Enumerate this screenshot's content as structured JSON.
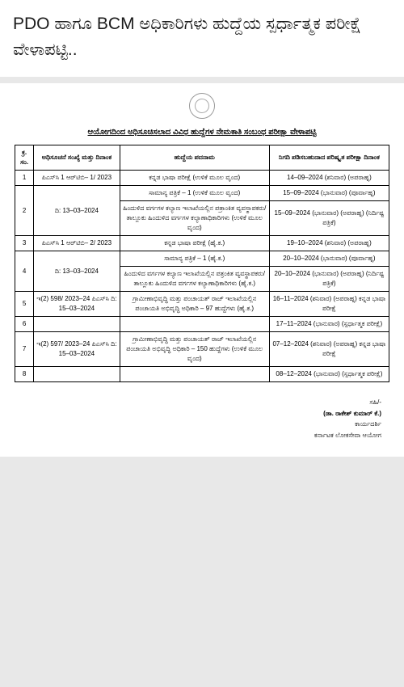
{
  "header": {
    "title": "PDO ಹಾಗೂ BCM ಅಧಿಕಾರಿಗಳು ಹುದ್ದೆಯ ಸ್ಪರ್ಧಾತ್ಮಕ ಪರೀಕ್ಷೆ ವೇಳಾಪಟ್ಟಿ.."
  },
  "document": {
    "title": "ಆಯೋಗದಿಂದ ಅಧಿಸೂಚಿಸಲಾದ ವಿವಿಧ ಹುದ್ದೆಗಳ ನೇಮಕಾತಿ ಸಂಬಂಧ ಪರೀಕ್ಷಾ ವೇಳಾಪಟ್ಟಿ"
  },
  "table": {
    "headers": {
      "sn": "ಕ್ರ. ಸಂ.",
      "notification": "ಅಧಿಸೂಚನೆ ಸಂಖ್ಯೆ ಮತ್ತು ದಿನಾಂಕ",
      "post": "ಹುದ್ದೆಯ ಪದನಾಮ",
      "exam_date": "ನಿಗದಿ ಪಡಿಸಬಹುದಾದ ಪರಿಷ್ಕೃತ ಪರೀಕ್ಷಾ ದಿನಾಂಕ"
    },
    "rows": [
      {
        "sn": "1",
        "notif": "ಪಿಎಸ್‌ಸಿ 1 ಆರ್‌ಟಿಬಿ– 1/ 2023",
        "post": "ಕನ್ನಡ ಭಾಷಾ ಪರೀಕ್ಷೆ (ಉಳಿಕೆ ಮೂಲ ವೃಂದ)",
        "date": "14–09–2024 (ಶನಿವಾರ) (ಅಪರಾಹ್ನ)"
      },
      {
        "sn": "2",
        "notif": "ದಿ: 13–03–2024",
        "post_a": "ಸಾಮಾನ್ಯ ಪತ್ರಿಕೆ – 1 (ಉಳಿಕೆ ಮೂಲ ವೃಂದ)",
        "date_a": "15–09–2024 (ಭಾನುವಾರ) (ಪೂರ್ವಾಹ್ನ)",
        "post_b": "ಹಿಂದುಳಿದ ವರ್ಗಗಳ ಕಲ್ಯಾಣ ಇಲಾಖೆಯಲ್ಲಿನ ಪತ್ರಾಂಕಿತ ವ್ಯವಸ್ಥಾಪಕರು/ ತಾಲ್ಲೂಕು ಹಿಂದುಳಿದ ವರ್ಗಗಳ ಕಲ್ಯಾಣಾಧಿಕಾರಿಗಳು (ಉಳಿಕೆ ಮೂಲ ವೃಂದ)",
        "date_b": "15–09–2024 (ಭಾನುವಾರ) (ಅಪರಾಹ್ನ) (ನಿರ್ದಿಷ್ಟ ಪತ್ರಿಕೆ)"
      },
      {
        "sn": "3",
        "notif": "ಪಿಎಸ್‌ಸಿ 1 ಆರ್‌ಟಿಬಿ– 2/ 2023",
        "post": "ಕನ್ನಡ ಭಾಷಾ ಪರೀಕ್ಷೆ (ಹೈ.ಕ.)",
        "date": "19–10–2024 (ಶನಿವಾರ) (ಅಪರಾಹ್ನ)"
      },
      {
        "sn": "4",
        "notif": "ದಿ: 13–03–2024",
        "post_a": "ಸಾಮಾನ್ಯ ಪತ್ರಿಕೆ – 1 (ಹೈ.ಕ.)",
        "date_a": "20–10–2024 (ಭಾನುವಾರ) (ಪೂರ್ವಾಹ್ನ)",
        "post_b": "ಹಿಂದುಳಿದ ವರ್ಗಗಳ ಕಲ್ಯಾಣ ಇಲಾಖೆಯಲ್ಲಿನ ಪತ್ರಂಕಿತ ವ್ಯವಸ್ಥಾಪಕರು/ ತಾಲ್ಲೂಕು ಹಿಂದುಳಿದ ವರ್ಗಗಳ ಕಲ್ಯಾಣಾಧಿಕಾರಿಗಳು (ಹೈ.ಕ.)",
        "date_b": "20–10–2024 (ಭಾನುವಾರ) (ಅಪರಾಹ್ನ) (ನಿರ್ದಿಷ್ಟ ಪತ್ರಿಕೆ)"
      },
      {
        "sn": "5",
        "notif": "ಇ(2) 598/ 2023–24 ಪಿಎಸ್‌ಸಿ ದಿ: 15–03–2024",
        "post": "ಗ್ರಾಮೀಣಾಭಿವೃದ್ಧಿ ಮತ್ತು ಪಂಚಾಯತ್ ರಾಜ್ ಇಲಾಖೆಯಲ್ಲಿನ ಪಂಚಾಯತಿ ಅಭಿವೃದ್ಧಿ ಅಧಿಕಾರಿ – 97 ಹುದ್ದೆಗಳು (ಹೈ.ಕ.)",
        "date": "16–11–2024 (ಶನಿವಾರ) (ಅಪರಾಹ್ನ) ಕನ್ನಡ ಭಾಷಾ ಪರೀಕ್ಷೆ"
      },
      {
        "sn": "6",
        "notif": "",
        "post": "",
        "date": "17–11–2024 (ಭಾನುವಾರ) (ಸ್ಪರ್ಧಾತ್ಮಕ ಪರೀಕ್ಷೆ)"
      },
      {
        "sn": "7",
        "notif": "ಇ(2) 597/ 2023–24 ಪಿಎಸ್‌ಸಿ ದಿ: 15–03–2024",
        "post": "ಗ್ರಾಮೀಣಾಭಿವೃದ್ಧಿ ಮತ್ತು ಪಂಚಾಯತ್ ರಾಜ್ ಇಲಾಖೆಯಲ್ಲಿನ ಪಂಚಾಯತಿ ಅಭಿವೃದ್ಧಿ ಅಧಿಕಾರಿ – 150 ಹುದ್ದೆಗಳು (ಉಳಿಕೆ ಮೂಲ ವೃಂದ)",
        "date": "07–12–2024 (ಶನಿವಾರ) (ಅಪರಾಹ್ನ) ಕನ್ನಡ ಭಾಷಾ ಪರೀಕ್ಷೆ"
      },
      {
        "sn": "8",
        "notif": "",
        "post": "",
        "date": "08–12–2024 (ಭಾನುವಾರ) (ಸ್ಪರ್ಧಾತ್ಮಕ ಪರೀಕ್ಷೆ)"
      }
    ]
  },
  "signature": {
    "prefix": "ಸಹಿ/-",
    "name": "(ಡಾ. ರಾಕೇಶ್ ಕುಮಾರ್ ಕೆ.)",
    "designation": "ಕಾರ್ಯದರ್ಶಿ",
    "org": "ಕರ್ನಾಟಕ ಲೋಕಸೇವಾ ಆಯೋಗ"
  },
  "style": {
    "page_bg": "#e8e8e8",
    "doc_bg": "#ffffff",
    "title_fontsize": 21,
    "table_fontsize": 8,
    "border_color": "#000000",
    "col_widths": {
      "sn": "5%",
      "notif": "23%",
      "post": "40%",
      "date": "32%"
    }
  }
}
